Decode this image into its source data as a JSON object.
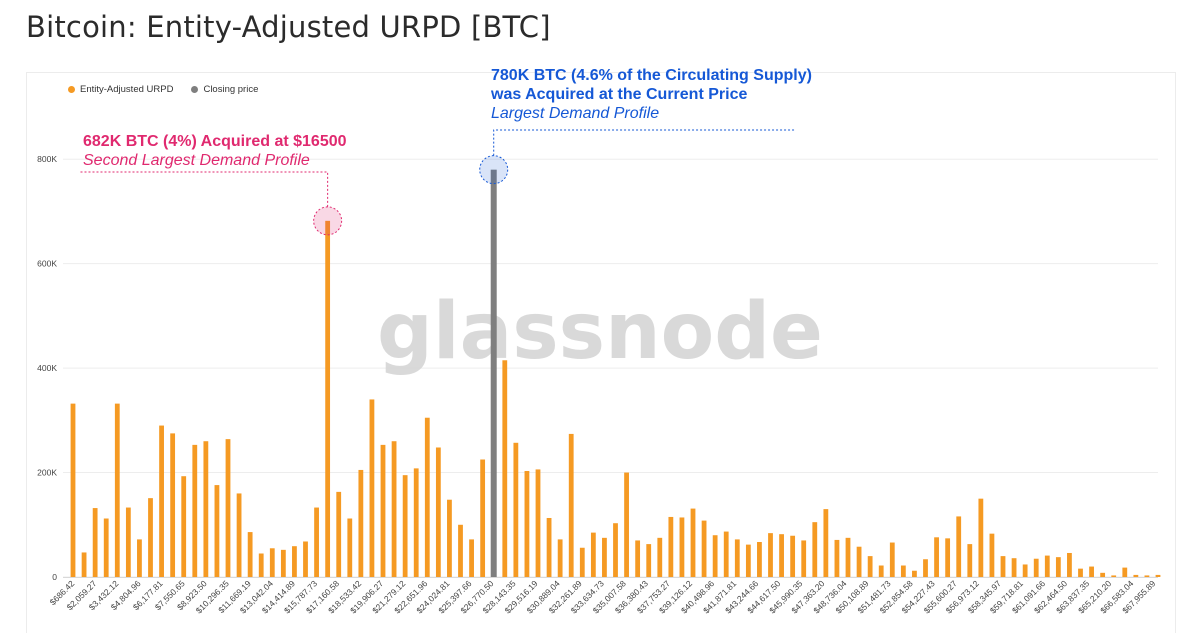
{
  "page": {
    "title": "Bitcoin: Entity-Adjusted URPD [BTC]"
  },
  "legend": {
    "urpd": {
      "label": "Entity-Adjusted URPD",
      "color": "#f59a23"
    },
    "closing": {
      "label": "Closing price",
      "color": "#7f7f7f"
    }
  },
  "annotations": {
    "second": {
      "line1": "682K BTC (4%) Acquired at $16500",
      "line2": "Second Largest Demand Profile",
      "color": "#e0296f"
    },
    "largest": {
      "line1": "780K BTC (4.6% of the Circulating Supply)",
      "line2": "was Acquired at the Current Price",
      "line3": "Largest Demand Profile",
      "color": "#1558d6"
    }
  },
  "watermark": "glassnode",
  "chart_data": {
    "type": "bar",
    "title": "Bitcoin: Entity-Adjusted URPD [BTC]",
    "ylim": [
      0,
      900000
    ],
    "y_ticks": [
      {
        "value": 0,
        "label": "0"
      },
      {
        "value": 200000,
        "label": "200K"
      },
      {
        "value": 400000,
        "label": "400K"
      },
      {
        "value": 600000,
        "label": "600K"
      },
      {
        "value": 800000,
        "label": "800K"
      }
    ],
    "x_tick_labels": [
      "$686.42",
      "$2,059.27",
      "$3,432.12",
      "$4,804.96",
      "$6,177.81",
      "$7,550.65",
      "$8,923.50",
      "$10,296.35",
      "$11,669.19",
      "$13,042.04",
      "$14,414.89",
      "$15,787.73",
      "$17,160.58",
      "$18,533.42",
      "$19,906.27",
      "$21,279.12",
      "$22,651.96",
      "$24,024.81",
      "$25,397.66",
      "$26,770.50",
      "$28,143.35",
      "$29,516.19",
      "$30,889.04",
      "$32,261.89",
      "$33,634.73",
      "$35,007.58",
      "$36,380.43",
      "$37,753.27",
      "$39,126.12",
      "$40,498.96",
      "$41,871.81",
      "$43,244.66",
      "$44,617.50",
      "$45,990.35",
      "$47,363.20",
      "$48,736.04",
      "$50,108.89",
      "$51,481.73",
      "$52,854.58",
      "$54,227.43",
      "$55,600.27",
      "$56,973.12",
      "$58,345.97",
      "$59,718.81",
      "$61,091.66",
      "$62,464.50",
      "$63,837.35",
      "$65,210.20",
      "$66,583.04",
      "$67,955.89"
    ],
    "series": [
      {
        "name": "Entity-Adjusted URPD",
        "color": "#f59a23",
        "values": [
          332000,
          47000,
          132000,
          112000,
          332000,
          133000,
          72000,
          151000,
          290000,
          275000,
          193000,
          253000,
          260000,
          176000,
          264000,
          160000,
          86000,
          45000,
          55000,
          52000,
          59000,
          68000,
          133000,
          682000,
          163000,
          112000,
          205000,
          340000,
          253000,
          260000,
          195000,
          208000,
          305000,
          248000,
          148000,
          100000,
          72000,
          225000,
          0,
          415000,
          257000,
          203000,
          206000,
          113000,
          72000,
          274000,
          56000,
          85000,
          75000,
          103000,
          200000,
          70000,
          63000,
          75000,
          115000,
          114000,
          131000,
          108000,
          80000,
          87000,
          72000,
          62000,
          67000,
          84000,
          82000,
          79000,
          70000,
          105000,
          130000,
          71000,
          75000,
          58000,
          40000,
          22000,
          66000,
          22000,
          12000,
          34000,
          76000,
          74000,
          116000,
          63000,
          150000,
          83000,
          40000,
          36000,
          24000,
          35000,
          41000,
          38000,
          46000,
          16000,
          20000,
          8000,
          3000,
          18000,
          4000,
          3000,
          4000
        ]
      },
      {
        "name": "Closing price",
        "color": "#7f7f7f",
        "index": 38,
        "value": 780000
      }
    ]
  }
}
